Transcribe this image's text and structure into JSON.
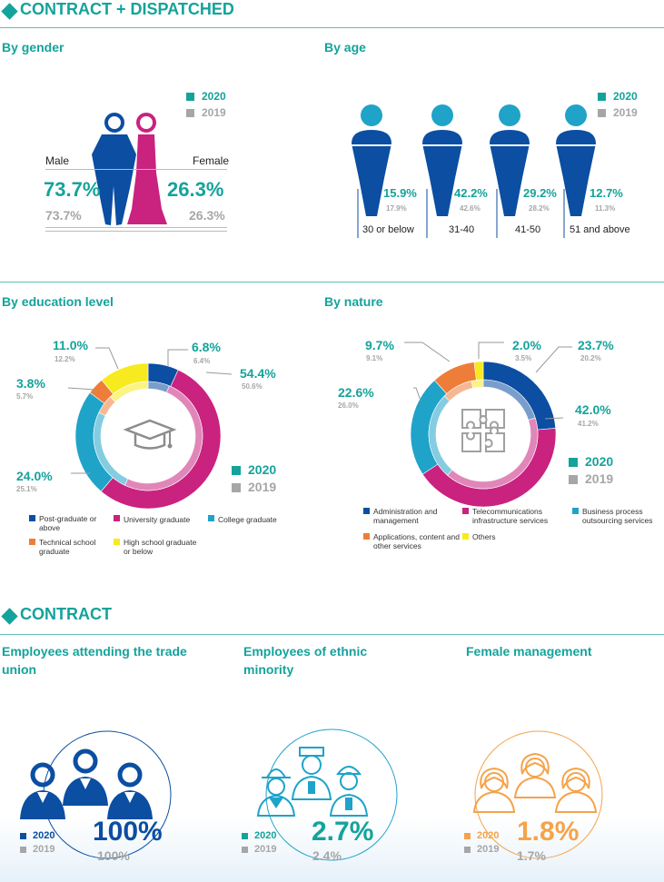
{
  "sections": {
    "contract_dispatched": "CONTRACT + DISPATCHED",
    "contract": "CONTRACT"
  },
  "legend": {
    "y2020": "2020",
    "y2019": "2019"
  },
  "colors": {
    "teal": "#14A39B",
    "grey": "#A6A6A6",
    "blue": "#0B4EA2",
    "magenta": "#C9227F",
    "cyan": "#1FA3C9",
    "orange": "#EE7D3A",
    "yellow": "#F7EA1E",
    "peach": "#F5A34B"
  },
  "gender": {
    "title": "By gender",
    "male_label": "Male",
    "female_label": "Female",
    "male_2020": "73.7%",
    "male_2019": "73.7%",
    "female_2020": "26.3%",
    "female_2019": "26.3%"
  },
  "age": {
    "title": "By age",
    "groups": [
      {
        "label": "30 or below",
        "v2020": "15.9%",
        "v2019": "17.9%"
      },
      {
        "label": "31-40",
        "v2020": "42.2%",
        "v2019": "42.6%"
      },
      {
        "label": "41-50",
        "v2020": "29.2%",
        "v2019": "28.2%"
      },
      {
        "label": "51 and above",
        "v2020": "12.7%",
        "v2019": "11.3%"
      }
    ]
  },
  "education": {
    "title": "By education level",
    "labels": [
      {
        "v2020": "6.8%",
        "v2019": "6.4%"
      },
      {
        "v2020": "54.4%",
        "v2019": "50.6%"
      },
      {
        "v2020": "24.0%",
        "v2019": "25.1%"
      },
      {
        "v2020": "3.8%",
        "v2019": "5.7%"
      },
      {
        "v2020": "11.0%",
        "v2019": "12.2%"
      }
    ],
    "legend": [
      "Post-graduate or above",
      "University graduate",
      "College graduate",
      "Technical school graduate",
      "High school graduate or below"
    ]
  },
  "nature": {
    "title": "By nature",
    "labels": [
      {
        "v2020": "23.7%",
        "v2019": "20.2%"
      },
      {
        "v2020": "42.0%",
        "v2019": "41.2%"
      },
      {
        "v2020": "22.6%",
        "v2019": "26.0%"
      },
      {
        "v2020": "9.7%",
        "v2019": "9.1%"
      },
      {
        "v2020": "2.0%",
        "v2019": "3.5%"
      }
    ],
    "legend": [
      "Administration and management",
      "Telecommunications infrastructure services",
      "Business process outsourcing services",
      "Applications, content and other services",
      "Others"
    ]
  },
  "contract": {
    "union": {
      "title": "Employees attending the trade union",
      "v2020": "100%",
      "v2019": "100%"
    },
    "ethnic": {
      "title": "Employees of ethnic minority",
      "v2020": "2.7%",
      "v2019": "2.4%"
    },
    "female_mgmt": {
      "title": "Female management",
      "v2020": "1.8%",
      "v2019": "1.7%"
    }
  },
  "chart_data": [
    {
      "type": "bar",
      "title": "By gender",
      "categories": [
        "Male",
        "Female"
      ],
      "series": [
        {
          "name": "2020",
          "values": [
            73.7,
            26.3
          ]
        },
        {
          "name": "2019",
          "values": [
            73.7,
            26.3
          ]
        }
      ]
    },
    {
      "type": "bar",
      "title": "By age",
      "categories": [
        "30 or below",
        "31-40",
        "41-50",
        "51 and above"
      ],
      "series": [
        {
          "name": "2020",
          "values": [
            15.9,
            42.2,
            29.2,
            12.7
          ]
        },
        {
          "name": "2019",
          "values": [
            17.9,
            42.6,
            28.2,
            11.3
          ]
        }
      ]
    },
    {
      "type": "pie",
      "title": "By education level",
      "categories": [
        "Post-graduate or above",
        "University graduate",
        "College graduate",
        "Technical school graduate",
        "High school graduate or below"
      ],
      "series": [
        {
          "name": "2020",
          "values": [
            6.8,
            54.4,
            24.0,
            3.8,
            11.0
          ]
        },
        {
          "name": "2019",
          "values": [
            6.4,
            50.6,
            25.1,
            5.7,
            12.2
          ]
        }
      ]
    },
    {
      "type": "pie",
      "title": "By nature",
      "categories": [
        "Administration and management",
        "Telecommunications infrastructure services",
        "Business process outsourcing services",
        "Applications, content and other services",
        "Others"
      ],
      "series": [
        {
          "name": "2020",
          "values": [
            23.7,
            42.0,
            22.6,
            9.7,
            2.0
          ]
        },
        {
          "name": "2019",
          "values": [
            20.2,
            41.2,
            26.0,
            9.1,
            3.5
          ]
        }
      ]
    },
    {
      "type": "bar",
      "title": "CONTRACT",
      "categories": [
        "Employees attending the trade union",
        "Employees of ethnic minority",
        "Female management"
      ],
      "series": [
        {
          "name": "2020",
          "values": [
            100,
            2.7,
            1.8
          ]
        },
        {
          "name": "2019",
          "values": [
            100,
            2.4,
            1.7
          ]
        }
      ]
    }
  ]
}
